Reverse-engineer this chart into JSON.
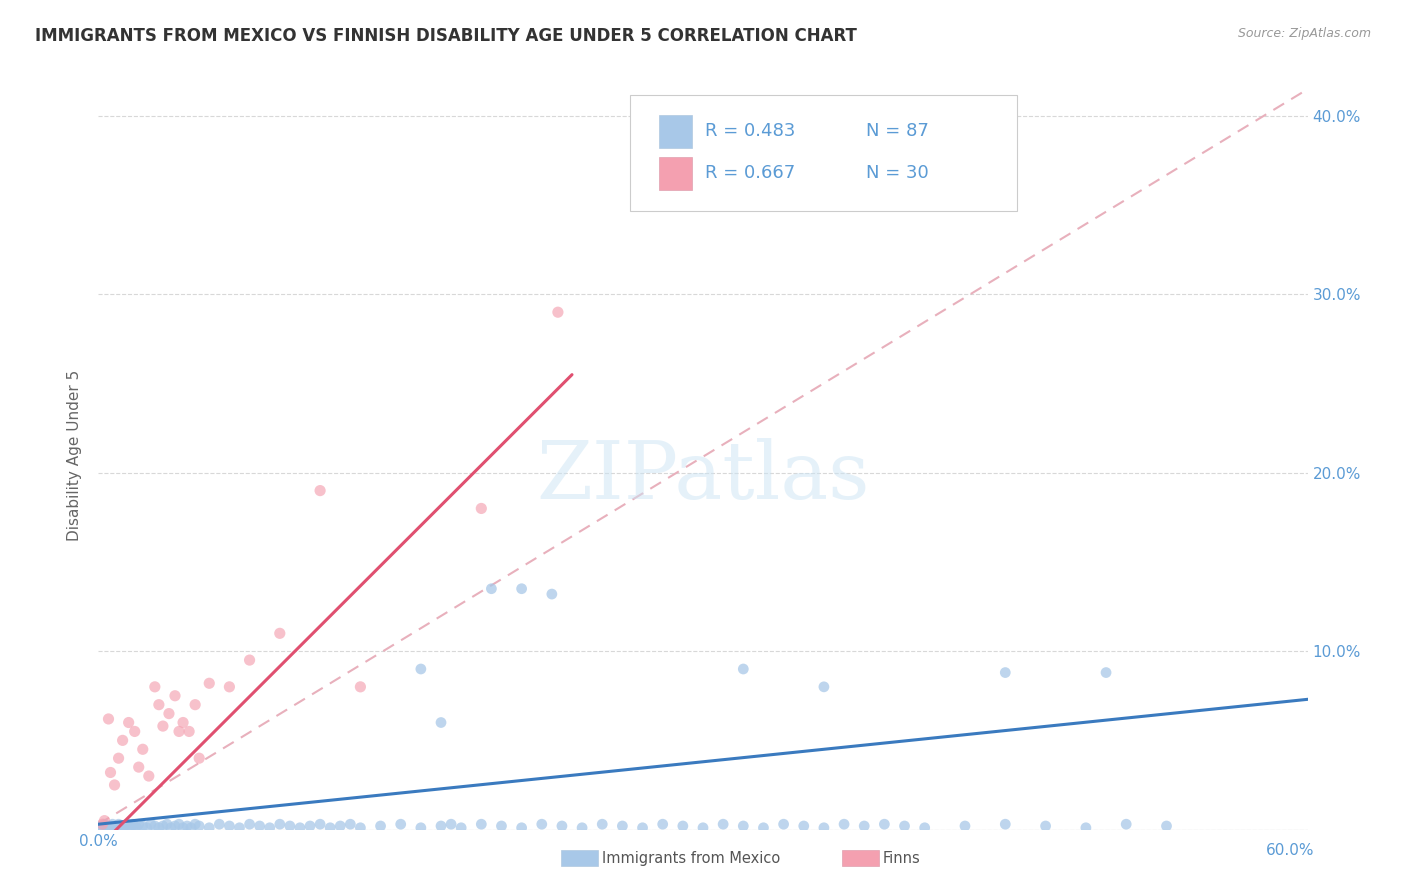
{
  "title": "IMMIGRANTS FROM MEXICO VS FINNISH DISABILITY AGE UNDER 5 CORRELATION CHART",
  "source": "Source: ZipAtlas.com",
  "ylabel": "Disability Age Under 5",
  "x_min": 0.0,
  "x_max": 0.6,
  "y_min": 0.0,
  "y_max": 0.42,
  "y_ticks": [
    0.0,
    0.1,
    0.2,
    0.3,
    0.4
  ],
  "y_tick_labels": [
    "",
    "10.0%",
    "20.0%",
    "30.0%",
    "40.0%"
  ],
  "watermark": "ZIPatlas",
  "blue_scatter_color": "#a8c8e8",
  "pink_scatter_color": "#f4a0b0",
  "blue_line_color": "#3a7abf",
  "pink_line_color": "#e05070",
  "dashed_line_color": "#e8b0bc",
  "tick_color": "#5b9bd5",
  "grid_color": "#d8d8d8",
  "background_color": "#ffffff",
  "title_fontsize": 12,
  "source_fontsize": 9,
  "axis_label_fontsize": 11,
  "tick_fontsize": 11,
  "legend_text_color": "#5b9bd5",
  "legend_fontsize": 13,
  "blue_trendline": {
    "x_start": 0.0,
    "y_start": 0.003,
    "x_end": 0.6,
    "y_end": 0.073
  },
  "pink_trendline": {
    "x_start": 0.0,
    "y_start": -0.01,
    "x_end": 0.235,
    "y_end": 0.255
  },
  "dashed_trendline": {
    "x_start": 0.0,
    "y_start": 0.003,
    "x_end": 0.6,
    "y_end": 0.415
  }
}
